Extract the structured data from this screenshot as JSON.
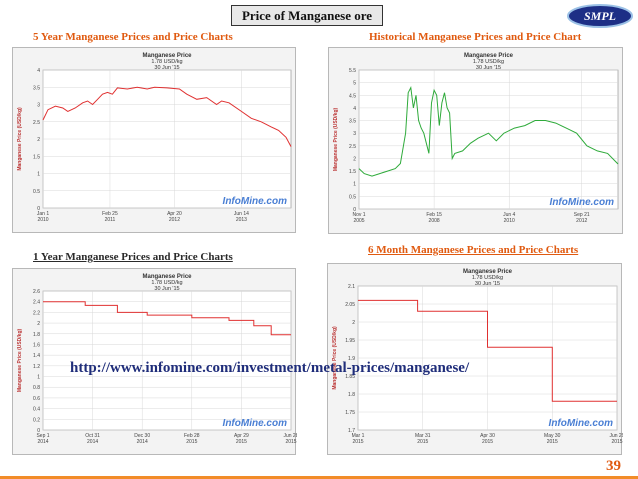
{
  "header": {
    "title": "Price of Manganese ore",
    "logo_text": "SMPL"
  },
  "sections": {
    "five_year": "5 Year Manganese Prices and Price Charts",
    "historical": "Historical Manganese Prices and Price Chart",
    "one_year": "1 Year Manganese Prices and Price Charts",
    "six_month": "6 Month Manganese Prices and Price Charts"
  },
  "url": "http://www.infomine.com/investment/metal-prices/manganese/",
  "page_number": "39",
  "colors": {
    "accent": "#e05a10",
    "red_line": "#e03030",
    "green_line": "#2eaa3a",
    "url_blue": "#1f2d7a"
  },
  "chart_data": [
    {
      "id": "five_year",
      "type": "line",
      "title": "Manganese Price",
      "subtitle": "1.78 USD/kg",
      "date": "30 Jun '15",
      "ylabel": "Manganese Price (USD/kg)",
      "ylim": [
        0,
        4
      ],
      "yticks": [
        "0",
        "0.5",
        "1",
        "1.5",
        "2",
        "2.5",
        "3",
        "3.5",
        "4"
      ],
      "xticks": [
        {
          "label": "Jan 1",
          "year": "2010",
          "t": 0
        },
        {
          "label": "Feb 25",
          "year": "2011",
          "t": 0.27
        },
        {
          "label": "Apr 20",
          "year": "2012",
          "t": 0.53
        },
        {
          "label": "Jun 14",
          "year": "2013",
          "t": 0.8
        }
      ],
      "watermark": "InfoMine.com",
      "series": [
        {
          "color": "#e03030",
          "points": [
            [
              0,
              2.55
            ],
            [
              0.02,
              2.85
            ],
            [
              0.05,
              2.95
            ],
            [
              0.08,
              2.9
            ],
            [
              0.1,
              2.8
            ],
            [
              0.13,
              2.9
            ],
            [
              0.16,
              3.05
            ],
            [
              0.18,
              3.1
            ],
            [
              0.2,
              3.0
            ],
            [
              0.22,
              3.15
            ],
            [
              0.24,
              3.3
            ],
            [
              0.26,
              3.35
            ],
            [
              0.28,
              3.3
            ],
            [
              0.3,
              3.48
            ],
            [
              0.34,
              3.45
            ],
            [
              0.38,
              3.5
            ],
            [
              0.42,
              3.45
            ],
            [
              0.45,
              3.5
            ],
            [
              0.5,
              3.48
            ],
            [
              0.55,
              3.45
            ],
            [
              0.58,
              3.3
            ],
            [
              0.62,
              3.15
            ],
            [
              0.66,
              3.2
            ],
            [
              0.7,
              3.0
            ],
            [
              0.72,
              3.1
            ],
            [
              0.75,
              3.05
            ],
            [
              0.8,
              2.8
            ],
            [
              0.84,
              2.6
            ],
            [
              0.88,
              2.5
            ],
            [
              0.92,
              2.35
            ],
            [
              0.95,
              2.25
            ],
            [
              0.98,
              2.05
            ],
            [
              1.0,
              1.78
            ]
          ]
        }
      ]
    },
    {
      "id": "historical",
      "type": "line",
      "title": "Manganese Price",
      "subtitle": "1.78 USD/kg",
      "date": "30 Jun '15",
      "ylabel": "Manganese Price (USD/kg)",
      "ylim": [
        0,
        5.5
      ],
      "yticks": [
        "0",
        "0.5",
        "1",
        "1.5",
        "2",
        "2.5",
        "3",
        "3.5",
        "4",
        "4.5",
        "5",
        "5.5"
      ],
      "xticks": [
        {
          "label": "Nov 1",
          "year": "2005",
          "t": 0
        },
        {
          "label": "Feb 15",
          "year": "2008",
          "t": 0.29
        },
        {
          "label": "Jun 4",
          "year": "2010",
          "t": 0.58
        },
        {
          "label": "Sep 21",
          "year": "2012",
          "t": 0.86
        }
      ],
      "watermark": "InfoMine.com",
      "series": [
        {
          "color": "#2eaa3a",
          "points": [
            [
              0,
              1.6
            ],
            [
              0.02,
              1.4
            ],
            [
              0.05,
              1.3
            ],
            [
              0.08,
              1.4
            ],
            [
              0.11,
              1.5
            ],
            [
              0.14,
              1.6
            ],
            [
              0.16,
              1.8
            ],
            [
              0.18,
              3.0
            ],
            [
              0.19,
              4.6
            ],
            [
              0.2,
              4.8
            ],
            [
              0.21,
              4.0
            ],
            [
              0.22,
              4.5
            ],
            [
              0.23,
              3.5
            ],
            [
              0.24,
              3.2
            ],
            [
              0.25,
              3.0
            ],
            [
              0.27,
              2.2
            ],
            [
              0.28,
              4.2
            ],
            [
              0.29,
              4.7
            ],
            [
              0.3,
              4.5
            ],
            [
              0.31,
              3.3
            ],
            [
              0.32,
              4.2
            ],
            [
              0.33,
              4.6
            ],
            [
              0.34,
              4.0
            ],
            [
              0.35,
              3.8
            ],
            [
              0.36,
              2.0
            ],
            [
              0.37,
              2.2
            ],
            [
              0.4,
              2.3
            ],
            [
              0.43,
              2.6
            ],
            [
              0.46,
              2.8
            ],
            [
              0.5,
              3.0
            ],
            [
              0.53,
              2.7
            ],
            [
              0.56,
              3.0
            ],
            [
              0.6,
              3.2
            ],
            [
              0.64,
              3.3
            ],
            [
              0.68,
              3.5
            ],
            [
              0.72,
              3.5
            ],
            [
              0.76,
              3.4
            ],
            [
              0.8,
              3.2
            ],
            [
              0.84,
              3.0
            ],
            [
              0.88,
              2.5
            ],
            [
              0.92,
              2.3
            ],
            [
              0.96,
              2.2
            ],
            [
              1.0,
              1.78
            ]
          ]
        }
      ]
    },
    {
      "id": "one_year",
      "type": "line",
      "title": "Manganese Price",
      "subtitle": "1.78 USD/kg",
      "date": "30 Jun '15",
      "ylabel": "Manganese Price (USD/kg)",
      "ylim": [
        0,
        2.6
      ],
      "yticks": [
        "0",
        "0.2",
        "0.4",
        "0.6",
        "0.8",
        "1",
        "1.2",
        "1.4",
        "1.6",
        "1.8",
        "2",
        "2.2",
        "2.4",
        "2.6"
      ],
      "xticks": [
        {
          "label": "Sep 1",
          "year": "2014",
          "t": 0
        },
        {
          "label": "Oct 31",
          "year": "2014",
          "t": 0.2
        },
        {
          "label": "Dec 30",
          "year": "2014",
          "t": 0.4
        },
        {
          "label": "Feb 28",
          "year": "2015",
          "t": 0.6
        },
        {
          "label": "Apr 29",
          "year": "2015",
          "t": 0.8
        },
        {
          "label": "Jun 28",
          "year": "2015",
          "t": 1.0
        }
      ],
      "watermark": "InfoMine.com",
      "series": [
        {
          "color": "#e03030",
          "points": [
            [
              0,
              2.4
            ],
            [
              0.17,
              2.4
            ],
            [
              0.17,
              2.33
            ],
            [
              0.3,
              2.33
            ],
            [
              0.3,
              2.2
            ],
            [
              0.42,
              2.2
            ],
            [
              0.42,
              2.15
            ],
            [
              0.6,
              2.15
            ],
            [
              0.6,
              2.1
            ],
            [
              0.75,
              2.1
            ],
            [
              0.75,
              2.05
            ],
            [
              0.85,
              2.05
            ],
            [
              0.85,
              1.95
            ],
            [
              0.92,
              1.95
            ],
            [
              0.92,
              1.78
            ],
            [
              1.0,
              1.78
            ]
          ]
        }
      ]
    },
    {
      "id": "six_month",
      "type": "line",
      "title": "Manganese Price",
      "subtitle": "1.78 USD/kg",
      "date": "30 Jun '15",
      "ylabel": "Manganese Price (USD/kg)",
      "ylim": [
        1.7,
        2.1
      ],
      "yticks": [
        "1.7",
        "1.75",
        "1.8",
        "1.85",
        "1.9",
        "1.95",
        "2",
        "2.05",
        "2.1"
      ],
      "xticks": [
        {
          "label": "Mar 1",
          "year": "2015",
          "t": 0
        },
        {
          "label": "Mar 31",
          "year": "2015",
          "t": 0.25
        },
        {
          "label": "Apr 30",
          "year": "2015",
          "t": 0.5
        },
        {
          "label": "May 30",
          "year": "2015",
          "t": 0.75
        },
        {
          "label": "Jun 29",
          "year": "2015",
          "t": 1.0
        }
      ],
      "watermark": "InfoMine.com",
      "series": [
        {
          "color": "#e03030",
          "points": [
            [
              0,
              2.06
            ],
            [
              0.23,
              2.06
            ],
            [
              0.23,
              2.03
            ],
            [
              0.5,
              2.03
            ],
            [
              0.5,
              1.93
            ],
            [
              0.75,
              1.93
            ],
            [
              0.75,
              1.78
            ],
            [
              1.0,
              1.78
            ]
          ]
        }
      ]
    }
  ]
}
